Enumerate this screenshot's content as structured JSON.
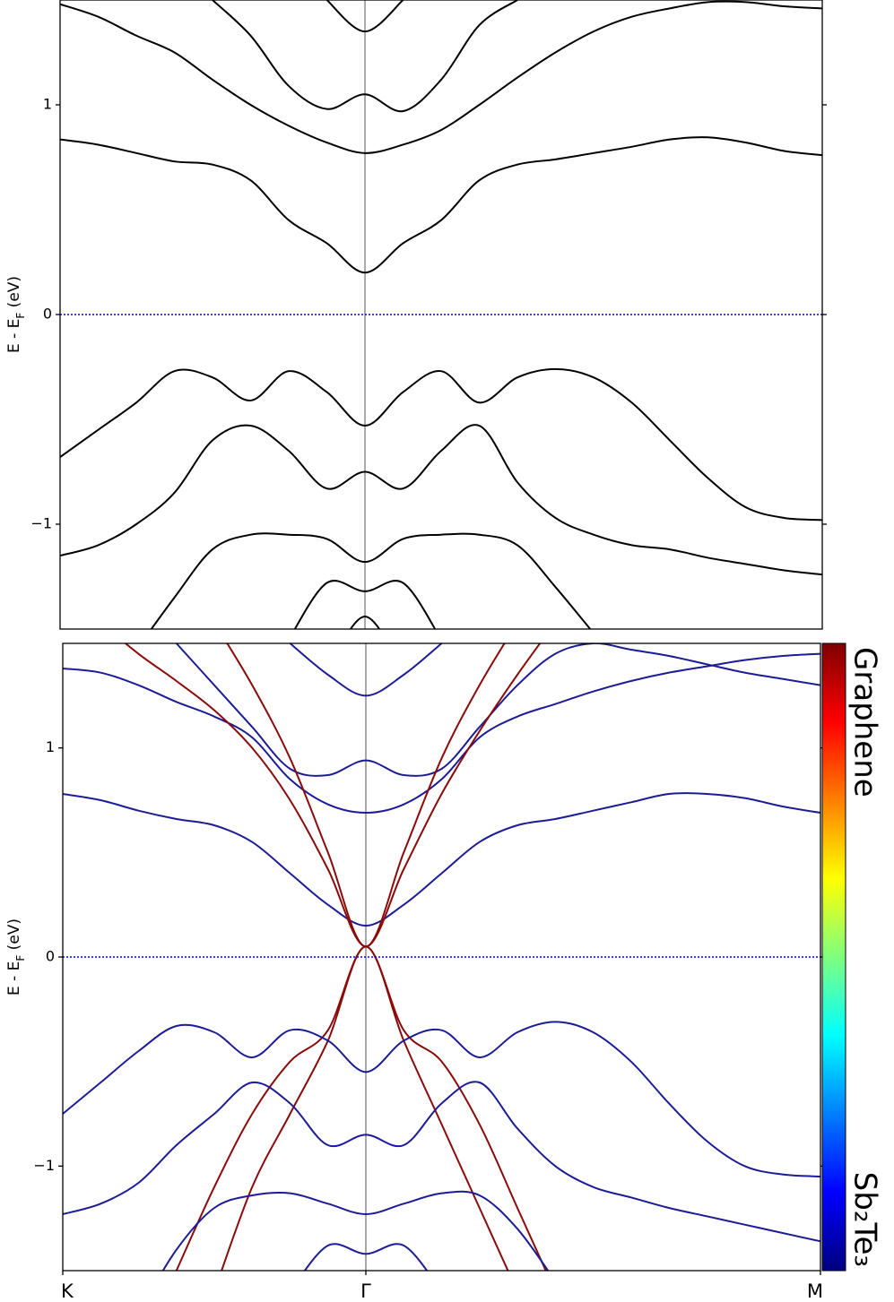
{
  "chart_data": [
    {
      "type": "line",
      "ylabel": [
        "E - E",
        "F",
        " (eV)"
      ],
      "xlim": [
        0,
        1
      ],
      "ylim": [
        -1.5,
        1.5
      ],
      "yticks": [
        {
          "value": -1,
          "label": "−1"
        },
        0,
        1
      ],
      "hline": {
        "value": 0,
        "color": "#0000ff",
        "style": "dotted"
      },
      "vline": {
        "value": 0.4,
        "color": "#555555"
      },
      "x": [
        0,
        0.05,
        0.1,
        0.15,
        0.2,
        0.25,
        0.3,
        0.35,
        0.4,
        0.45,
        0.5,
        0.55,
        0.6,
        0.65,
        0.7,
        0.75,
        0.8,
        0.85,
        0.9,
        0.95,
        1
      ],
      "series": [
        {
          "color": "#000000",
          "values": [
            0.835,
            0.81,
            0.77,
            0.73,
            0.715,
            0.64,
            0.45,
            0.34,
            0.2,
            0.34,
            0.45,
            0.64,
            0.715,
            0.74,
            0.77,
            0.8,
            0.835,
            0.845,
            0.82,
            0.78,
            0.76
          ]
        },
        {
          "color": "#000000",
          "values": [
            1.48,
            1.42,
            1.33,
            1.25,
            1.12,
            1.0,
            0.9,
            0.82,
            0.77,
            0.81,
            0.88,
            1.0,
            1.13,
            1.25,
            1.35,
            1.42,
            1.46,
            1.49,
            1.49,
            1.47,
            1.46
          ]
        },
        {
          "color": "#000000",
          "values": [
            null,
            null,
            null,
            null,
            1.5,
            1.33,
            1.09,
            0.98,
            1.05,
            0.97,
            1.12,
            1.38,
            1.5,
            null,
            null,
            null,
            null,
            null,
            null,
            null,
            null
          ]
        },
        {
          "color": "#000000",
          "values": [
            null,
            null,
            null,
            null,
            null,
            null,
            null,
            1.5,
            1.35,
            1.5,
            null,
            null,
            null,
            null,
            null,
            null,
            null,
            null,
            null,
            null,
            null
          ]
        },
        {
          "color": "#000000",
          "values": [
            -0.68,
            -0.55,
            -0.42,
            -0.27,
            -0.3,
            -0.41,
            -0.27,
            -0.37,
            -0.53,
            -0.37,
            -0.27,
            -0.42,
            -0.3,
            -0.26,
            -0.3,
            -0.42,
            -0.6,
            -0.78,
            -0.92,
            -0.97,
            -0.98
          ]
        },
        {
          "color": "#000000",
          "values": [
            -1.15,
            -1.1,
            -1.0,
            -0.85,
            -0.6,
            -0.53,
            -0.65,
            -0.83,
            -0.75,
            -0.83,
            -0.65,
            -0.53,
            -0.8,
            -0.97,
            -1.05,
            -1.1,
            -1.12,
            -1.16,
            -1.19,
            -1.22,
            -1.24
          ]
        },
        {
          "color": "#000000",
          "values": [
            null,
            null,
            -1.6,
            -1.35,
            -1.12,
            -1.05,
            -1.05,
            -1.07,
            -1.18,
            -1.07,
            -1.05,
            -1.05,
            -1.1,
            -1.3,
            -1.52,
            null,
            null,
            null,
            null,
            null,
            null
          ]
        },
        {
          "color": "#000000",
          "values": [
            null,
            null,
            null,
            null,
            null,
            null,
            -1.55,
            -1.28,
            -1.32,
            -1.28,
            -1.55,
            null,
            null,
            null,
            null,
            null,
            null,
            null,
            null,
            null,
            null
          ]
        },
        {
          "color": "#000000",
          "values": [
            null,
            null,
            null,
            null,
            null,
            null,
            null,
            -1.7,
            -1.44,
            -1.7,
            null,
            null,
            null,
            null,
            null,
            null,
            null,
            null,
            null,
            null,
            null
          ]
        }
      ]
    },
    {
      "type": "line",
      "ylabel": [
        "E - E",
        "F",
        " (eV)"
      ],
      "xlim": [
        0,
        1
      ],
      "ylim": [
        -1.5,
        1.5
      ],
      "yticks": [
        {
          "value": -1,
          "label": "−1"
        },
        0,
        1
      ],
      "xticks": [
        {
          "value": 0,
          "label": "K"
        },
        {
          "value": 0.4,
          "label": "Γ"
        },
        {
          "value": 1,
          "label": "M"
        }
      ],
      "hline": {
        "value": 0,
        "color": "#0000ff",
        "style": "dotted"
      },
      "vline": {
        "value": 0.4,
        "color": "#555555"
      },
      "colorbar": {
        "colors": [
          "#00007f",
          "#0000ff",
          "#007fff",
          "#00ffff",
          "#7fff7f",
          "#ffff00",
          "#ff7f00",
          "#ff0000",
          "#7f0000"
        ],
        "labels": [
          "Graphene",
          "Sb₂Te₃"
        ]
      },
      "x": [
        0,
        0.05,
        0.1,
        0.15,
        0.2,
        0.25,
        0.3,
        0.35,
        0.4,
        0.45,
        0.5,
        0.55,
        0.6,
        0.65,
        0.7,
        0.75,
        0.8,
        0.85,
        0.9,
        0.95,
        1
      ],
      "series": [
        {
          "color": "#1c1c96",
          "values": [
            0.78,
            0.75,
            0.7,
            0.66,
            0.63,
            0.55,
            0.4,
            0.25,
            0.15,
            0.25,
            0.4,
            0.55,
            0.63,
            0.66,
            0.7,
            0.74,
            0.78,
            0.78,
            0.76,
            0.72,
            0.69
          ]
        },
        {
          "color": "#1c1c96",
          "values": [
            1.38,
            1.36,
            1.3,
            1.22,
            1.15,
            1.05,
            0.85,
            0.73,
            0.69,
            0.73,
            0.85,
            1.05,
            1.15,
            1.21,
            1.27,
            1.32,
            1.36,
            1.39,
            1.42,
            1.44,
            1.45
          ]
        },
        {
          "color": "#1c1c96",
          "values": [
            null,
            null,
            null,
            1.5,
            1.3,
            1.1,
            0.9,
            0.87,
            0.94,
            0.87,
            0.9,
            1.1,
            1.3,
            1.45,
            1.5,
            1.47,
            1.44,
            1.4,
            1.36,
            1.33,
            1.3
          ]
        },
        {
          "color": "#1c1c96",
          "values": [
            null,
            null,
            null,
            null,
            null,
            null,
            1.5,
            1.35,
            1.25,
            1.35,
            1.5,
            null,
            null,
            null,
            null,
            null,
            null,
            null,
            null,
            null,
            null
          ]
        },
        {
          "color": "#8b0a0a",
          "values": [
            null,
            1.6,
            1.45,
            1.32,
            1.18,
            1.0,
            0.75,
            0.42,
            0.05,
            0.42,
            0.78,
            1.08,
            1.35,
            1.6,
            null,
            null,
            null,
            null,
            null,
            null,
            null
          ]
        },
        {
          "color": "#8b0a0a",
          "values": [
            null,
            null,
            null,
            null,
            1.6,
            1.3,
            0.95,
            0.5,
            0.05,
            0.5,
            0.95,
            1.3,
            1.6,
            null,
            null,
            null,
            null,
            null,
            null,
            null,
            null
          ]
        },
        {
          "color": "#8b0a0a",
          "values": [
            null,
            null,
            null,
            -1.5,
            -1.1,
            -0.75,
            -0.5,
            -0.35,
            0.05,
            -0.35,
            -0.5,
            -0.8,
            -1.2,
            -1.6,
            null,
            null,
            null,
            null,
            null,
            null,
            null
          ]
        },
        {
          "color": "#8b0a0a",
          "values": [
            null,
            null,
            null,
            null,
            -1.6,
            -1.1,
            -0.75,
            -0.4,
            0.05,
            -0.4,
            -0.8,
            -1.2,
            -1.6,
            null,
            null,
            null,
            null,
            null,
            null,
            null,
            null
          ]
        },
        {
          "color": "#1c1c96",
          "values": [
            -0.75,
            -0.6,
            -0.45,
            -0.33,
            -0.36,
            -0.48,
            -0.35,
            -0.4,
            -0.55,
            -0.4,
            -0.35,
            -0.48,
            -0.36,
            -0.31,
            -0.36,
            -0.5,
            -0.7,
            -0.88,
            -1.0,
            -1.04,
            -1.05
          ]
        },
        {
          "color": "#1c1c96",
          "values": [
            -1.23,
            -1.18,
            -1.08,
            -0.9,
            -0.75,
            -0.6,
            -0.7,
            -0.9,
            -0.85,
            -0.9,
            -0.7,
            -0.6,
            -0.82,
            -1.0,
            -1.1,
            -1.15,
            -1.2,
            -1.24,
            -1.28,
            -1.32,
            -1.36
          ]
        },
        {
          "color": "#1c1c96",
          "values": [
            null,
            null,
            -1.7,
            -1.4,
            -1.2,
            -1.14,
            -1.13,
            -1.18,
            -1.23,
            -1.18,
            -1.13,
            -1.14,
            -1.3,
            -1.55,
            null,
            null,
            null,
            null,
            null,
            null,
            null
          ]
        },
        {
          "color": "#1c1c96",
          "values": [
            null,
            null,
            null,
            null,
            null,
            null,
            -1.6,
            -1.38,
            -1.42,
            -1.38,
            -1.6,
            null,
            null,
            null,
            null,
            null,
            null,
            null,
            null,
            null,
            null
          ]
        }
      ]
    }
  ]
}
